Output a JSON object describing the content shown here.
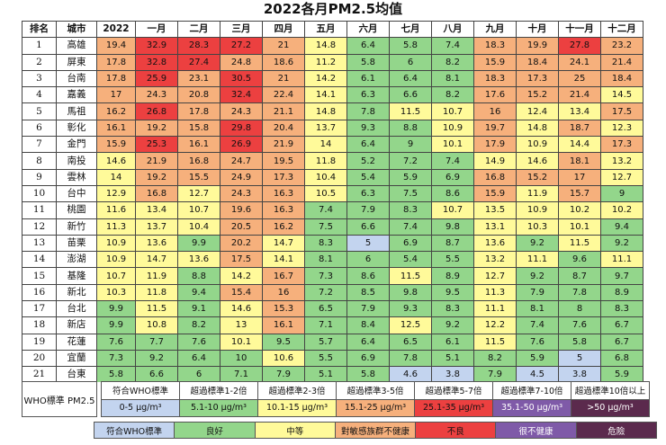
{
  "chart_data": {
    "type": "table",
    "title": "2022各月PM2.5均值",
    "headers": [
      "排名",
      "城市",
      "2022",
      "一月",
      "二月",
      "三月",
      "四月",
      "五月",
      "六月",
      "七月",
      "八月",
      "九月",
      "十月",
      "十一月",
      "十二月"
    ],
    "rows": [
      {
        "rank": "1",
        "city": "高雄",
        "values": [
          19.4,
          32.9,
          28.3,
          27.2,
          21,
          14.8,
          6.4,
          5.8,
          7.4,
          18.3,
          19.9,
          27.8,
          23.2
        ]
      },
      {
        "rank": "2",
        "city": "屏東",
        "values": [
          17.8,
          32.8,
          27.4,
          24.8,
          18.6,
          11.2,
          5.8,
          6,
          8.2,
          15.9,
          18.4,
          24.1,
          21.4
        ]
      },
      {
        "rank": "3",
        "city": "台南",
        "values": [
          17.8,
          25.9,
          23.1,
          30.5,
          21,
          14.2,
          6.1,
          6.4,
          8.1,
          18.3,
          17.3,
          25,
          18.4
        ]
      },
      {
        "rank": "4",
        "city": "嘉義",
        "values": [
          17,
          24.3,
          20.8,
          32.4,
          22.4,
          14.1,
          6.3,
          6.6,
          8.2,
          17.6,
          15.2,
          21.4,
          14.5
        ]
      },
      {
        "rank": "5",
        "city": "馬祖",
        "values": [
          16.2,
          26.8,
          17.8,
          24.3,
          21.1,
          14.8,
          7.8,
          11.5,
          10.7,
          16,
          12.4,
          13.4,
          17.5
        ]
      },
      {
        "rank": "6",
        "city": "彰化",
        "values": [
          16.1,
          19.2,
          15.8,
          29.8,
          20.4,
          13.7,
          9.3,
          8.8,
          10.9,
          19.7,
          14.8,
          18.7,
          12.3
        ]
      },
      {
        "rank": "7",
        "city": "金門",
        "values": [
          15.9,
          25.3,
          16.1,
          26.9,
          21.9,
          14,
          6.4,
          9,
          10.1,
          17.9,
          10.9,
          14.4,
          17.3
        ]
      },
      {
        "rank": "8",
        "city": "南投",
        "values": [
          14.6,
          21.9,
          16.8,
          24.7,
          19.5,
          11.8,
          5.2,
          7.2,
          7.4,
          14.9,
          14.6,
          18.1,
          13.2
        ]
      },
      {
        "rank": "9",
        "city": "雲林",
        "values": [
          14,
          19.2,
          15.5,
          24.9,
          17.3,
          10.4,
          5.4,
          5.9,
          6.9,
          16.8,
          15.2,
          17,
          12.7
        ]
      },
      {
        "rank": "10",
        "city": "台中",
        "values": [
          12.9,
          16.8,
          12.7,
          24.3,
          16.3,
          10.5,
          6.3,
          7.5,
          8.6,
          15.9,
          11.9,
          15.7,
          9
        ]
      },
      {
        "rank": "11",
        "city": "桃園",
        "values": [
          11.6,
          13.4,
          10.7,
          19.6,
          16.3,
          7.4,
          7.9,
          8.3,
          10.7,
          13.5,
          10.9,
          10.2,
          10.2
        ]
      },
      {
        "rank": "12",
        "city": "新竹",
        "values": [
          11.3,
          13.7,
          10.4,
          20.5,
          16.2,
          7.5,
          6.6,
          7.4,
          9.8,
          13.1,
          10.3,
          10.1,
          9.4
        ]
      },
      {
        "rank": "13",
        "city": "苗栗",
        "values": [
          10.9,
          13.6,
          9.9,
          20.2,
          14.7,
          8.3,
          5,
          6.9,
          8.7,
          13.6,
          9.2,
          11.5,
          9.2
        ]
      },
      {
        "rank": "14",
        "city": "澎湖",
        "values": [
          10.9,
          14.7,
          13.6,
          17.5,
          14.1,
          8.1,
          6,
          5.4,
          5.5,
          13.2,
          11.1,
          9.6,
          11.1
        ]
      },
      {
        "rank": "15",
        "city": "基隆",
        "values": [
          10.7,
          11.9,
          8.8,
          14.2,
          16.7,
          7.3,
          8.6,
          11.5,
          8.9,
          12.7,
          9.2,
          8.7,
          9.7
        ]
      },
      {
        "rank": "16",
        "city": "新北",
        "values": [
          10.3,
          11.8,
          9.4,
          15.4,
          16,
          7.2,
          8.5,
          9.8,
          9.5,
          11.3,
          7.9,
          7.8,
          8.9
        ]
      },
      {
        "rank": "17",
        "city": "台北",
        "values": [
          9.9,
          11.5,
          9.1,
          14.6,
          15.3,
          6.5,
          7.9,
          9.3,
          8.3,
          11.1,
          8.1,
          8,
          8.3
        ]
      },
      {
        "rank": "18",
        "city": "新店",
        "values": [
          9.9,
          10.8,
          8.2,
          13,
          16.1,
          7.1,
          8.4,
          12.5,
          9.2,
          12.2,
          7.4,
          7.6,
          6.7
        ]
      },
      {
        "rank": "19",
        "city": "花蓮",
        "values": [
          7.6,
          7.7,
          7.6,
          10.1,
          9.5,
          5.7,
          6.4,
          6.5,
          6.1,
          11.5,
          7.6,
          5.8,
          6.7
        ]
      },
      {
        "rank": "20",
        "city": "宜蘭",
        "values": [
          7.3,
          9.2,
          6.4,
          10,
          10.6,
          5.5,
          6.9,
          7.8,
          5.1,
          8.2,
          5.9,
          5,
          6.8
        ]
      },
      {
        "rank": "21",
        "city": "台東",
        "values": [
          5.8,
          6.6,
          6,
          7.1,
          7.9,
          5.1,
          5.8,
          4.6,
          3.8,
          7.9,
          4.5,
          3.8,
          5.9
        ]
      }
    ]
  },
  "colors": {
    "who": "#c3d4ef",
    "good": "#93d68b",
    "moderate": "#fffa9a",
    "usg": "#f6b07c",
    "bad": "#ec4040",
    "very_bad": "#7f5aa8",
    "hazardous": "#5b2a4d"
  },
  "legend": {
    "label": "WHO標準  PM2.5",
    "items": [
      {
        "category": "符合WHO標準",
        "range": "0-5 μg/m³",
        "color": "who"
      },
      {
        "category": "超過標準1-2倍",
        "range": "5.1-10 μg/m³",
        "color": "good"
      },
      {
        "category": "超過標準2-3倍",
        "range": "10.1-15 μg/m³",
        "color": "moderate"
      },
      {
        "category": "超過標準3-5倍",
        "range": "15.1-25 μg/m³",
        "color": "usg"
      },
      {
        "category": "超過標準5-7倍",
        "range": "25.1-35 μg/m³",
        "color": "bad"
      },
      {
        "category": "超過標準7-10倍",
        "range": "35.1-50 μg/m³",
        "color": "very_bad"
      },
      {
        "category": "超過標準10倍以上",
        "range": ">50 μg/m³",
        "color": "hazardous"
      }
    ]
  },
  "bottom_legend": [
    {
      "label": "符合WHO標準",
      "color": "who"
    },
    {
      "label": "良好",
      "color": "good"
    },
    {
      "label": "中等",
      "color": "moderate"
    },
    {
      "label": "對敏感族群不健康",
      "color": "usg"
    },
    {
      "label": "不良",
      "color": "bad"
    },
    {
      "label": "很不健康",
      "color": "very_bad"
    },
    {
      "label": "危險",
      "color": "hazardous"
    }
  ]
}
